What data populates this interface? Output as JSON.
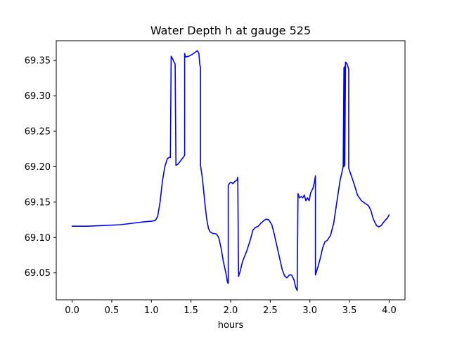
{
  "chart_data": {
    "type": "line",
    "title": "Water Depth h at gauge 525",
    "xlabel": "hours",
    "ylabel": "",
    "xlim": [
      -0.2,
      4.2
    ],
    "ylim": [
      69.012,
      69.378
    ],
    "x_ticks": [
      0.0,
      0.5,
      1.0,
      1.5,
      2.0,
      2.5,
      3.0,
      3.5,
      4.0
    ],
    "x_tick_labels": [
      "0.0",
      "0.5",
      "1.0",
      "1.5",
      "2.0",
      "2.5",
      "3.0",
      "3.5",
      "4.0"
    ],
    "y_ticks": [
      69.05,
      69.1,
      69.15,
      69.2,
      69.25,
      69.3,
      69.35
    ],
    "y_tick_labels": [
      "69.05",
      "69.10",
      "69.15",
      "69.20",
      "69.25",
      "69.30",
      "69.35"
    ],
    "grid": false,
    "series": [
      {
        "color": "#0000ff",
        "points": [
          [
            0.0,
            69.116
          ],
          [
            0.2,
            69.116
          ],
          [
            0.4,
            69.117
          ],
          [
            0.6,
            69.118
          ],
          [
            0.68,
            69.119
          ],
          [
            0.75,
            69.12
          ],
          [
            0.9,
            69.122
          ],
          [
            1.0,
            69.123
          ],
          [
            1.05,
            69.124
          ],
          [
            1.08,
            69.13
          ],
          [
            1.11,
            69.15
          ],
          [
            1.14,
            69.18
          ],
          [
            1.17,
            69.2
          ],
          [
            1.2,
            69.211
          ],
          [
            1.22,
            69.213
          ],
          [
            1.24,
            69.213
          ],
          [
            1.25,
            69.356
          ],
          [
            1.27,
            69.352
          ],
          [
            1.29,
            69.347
          ],
          [
            1.3,
            69.345
          ],
          [
            1.31,
            69.202
          ],
          [
            1.33,
            69.203
          ],
          [
            1.36,
            69.207
          ],
          [
            1.4,
            69.213
          ],
          [
            1.42,
            69.216
          ],
          [
            1.42,
            69.36
          ],
          [
            1.43,
            69.355
          ],
          [
            1.47,
            69.356
          ],
          [
            1.52,
            69.359
          ],
          [
            1.57,
            69.363
          ],
          [
            1.58,
            69.364
          ],
          [
            1.6,
            69.36
          ],
          [
            1.61,
            69.345
          ],
          [
            1.62,
            69.34
          ],
          [
            1.62,
            69.202
          ],
          [
            1.64,
            69.187
          ],
          [
            1.66,
            69.166
          ],
          [
            1.68,
            69.143
          ],
          [
            1.7,
            69.125
          ],
          [
            1.72,
            69.113
          ],
          [
            1.74,
            69.108
          ],
          [
            1.77,
            69.106
          ],
          [
            1.82,
            69.105
          ],
          [
            1.85,
            69.1
          ],
          [
            1.88,
            69.085
          ],
          [
            1.91,
            69.065
          ],
          [
            1.94,
            69.05
          ],
          [
            1.96,
            69.037
          ],
          [
            1.97,
            69.035
          ],
          [
            1.97,
            69.174
          ],
          [
            1.99,
            69.177
          ],
          [
            2.01,
            69.178
          ],
          [
            2.03,
            69.176
          ],
          [
            2.05,
            69.179
          ],
          [
            2.08,
            69.181
          ],
          [
            2.09,
            69.185
          ],
          [
            2.1,
            69.045
          ],
          [
            2.12,
            69.052
          ],
          [
            2.15,
            69.066
          ],
          [
            2.2,
            69.08
          ],
          [
            2.25,
            69.097
          ],
          [
            2.28,
            69.11
          ],
          [
            2.31,
            69.114
          ],
          [
            2.35,
            69.116
          ],
          [
            2.38,
            69.12
          ],
          [
            2.42,
            69.124
          ],
          [
            2.45,
            69.126
          ],
          [
            2.48,
            69.125
          ],
          [
            2.52,
            69.118
          ],
          [
            2.55,
            69.105
          ],
          [
            2.58,
            69.09
          ],
          [
            2.62,
            69.07
          ],
          [
            2.65,
            69.055
          ],
          [
            2.68,
            69.046
          ],
          [
            2.71,
            69.043
          ],
          [
            2.74,
            69.047
          ],
          [
            2.77,
            69.047
          ],
          [
            2.8,
            69.04
          ],
          [
            2.82,
            69.03
          ],
          [
            2.84,
            69.025
          ],
          [
            2.85,
            69.162
          ],
          [
            2.87,
            69.156
          ],
          [
            2.89,
            69.158
          ],
          [
            2.91,
            69.156
          ],
          [
            2.93,
            69.16
          ],
          [
            2.95,
            69.152
          ],
          [
            2.97,
            69.156
          ],
          [
            2.99,
            69.152
          ],
          [
            3.01,
            69.163
          ],
          [
            3.04,
            69.17
          ],
          [
            3.06,
            69.18
          ],
          [
            3.07,
            69.187
          ],
          [
            3.07,
            69.047
          ],
          [
            3.1,
            69.058
          ],
          [
            3.13,
            69.07
          ],
          [
            3.16,
            69.085
          ],
          [
            3.19,
            69.094
          ],
          [
            3.22,
            69.096
          ],
          [
            3.26,
            69.103
          ],
          [
            3.3,
            69.12
          ],
          [
            3.34,
            69.15
          ],
          [
            3.38,
            69.18
          ],
          [
            3.42,
            69.2
          ],
          [
            3.43,
            69.34
          ],
          [
            3.43,
            69.2
          ],
          [
            3.44,
            69.342
          ],
          [
            3.44,
            69.202
          ],
          [
            3.45,
            69.348
          ],
          [
            3.47,
            69.345
          ],
          [
            3.49,
            69.338
          ],
          [
            3.49,
            69.198
          ],
          [
            3.52,
            69.188
          ],
          [
            3.56,
            69.175
          ],
          [
            3.6,
            69.16
          ],
          [
            3.65,
            69.152
          ],
          [
            3.7,
            69.148
          ],
          [
            3.74,
            69.145
          ],
          [
            3.77,
            69.138
          ],
          [
            3.8,
            69.126
          ],
          [
            3.84,
            69.117
          ],
          [
            3.87,
            69.115
          ],
          [
            3.9,
            69.117
          ],
          [
            3.94,
            69.123
          ],
          [
            3.98,
            69.128
          ],
          [
            4.0,
            69.132
          ]
        ]
      }
    ]
  }
}
